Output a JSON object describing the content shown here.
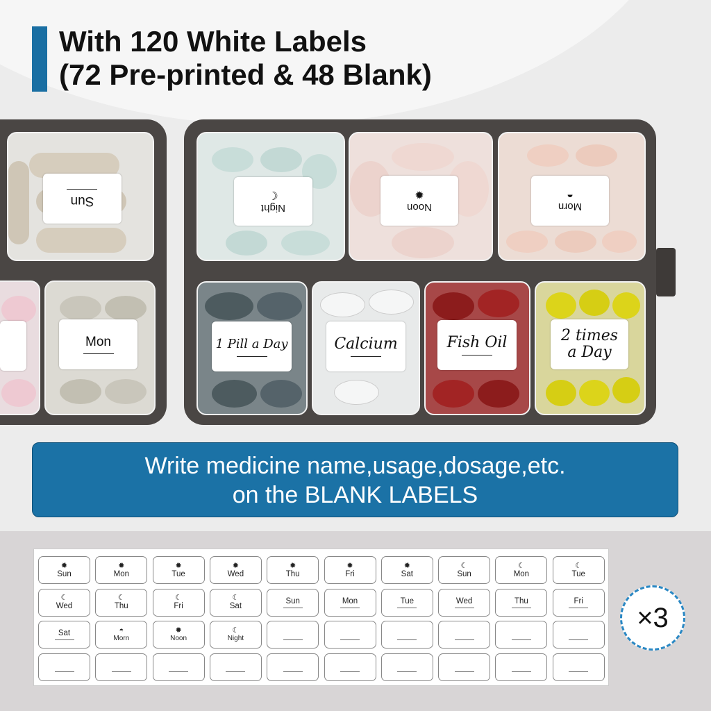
{
  "title": {
    "line1": "With 120 White Labels",
    "line2": "(72 Pre-printed & 48 Blank)"
  },
  "case_labels": {
    "sun": "Sun",
    "night": "Night",
    "noon": "Noon",
    "morn": "Morn",
    "mon": "Mon",
    "one_pill": "1 Pill a Day",
    "calcium": "Calcium",
    "fish_oil": "Fish Oil",
    "two_times": "2 times a Day"
  },
  "banner": {
    "line1": "Write medicine name,usage,dosage,etc.",
    "line2": "on the BLANK LABELS"
  },
  "multiplier": "×3",
  "colors": {
    "accent": "#1b72a6",
    "case": "#4a4644"
  },
  "sheet": [
    [
      {
        "icon": "sun",
        "text": "Sun"
      },
      {
        "icon": "sun",
        "text": "Mon"
      },
      {
        "icon": "sun",
        "text": "Tue"
      },
      {
        "icon": "sun",
        "text": "Wed"
      },
      {
        "icon": "sun",
        "text": "Thu"
      },
      {
        "icon": "sun",
        "text": "Fri"
      },
      {
        "icon": "sun",
        "text": "Sat"
      },
      {
        "icon": "moon",
        "text": "Sun"
      },
      {
        "icon": "moon",
        "text": "Mon"
      },
      {
        "icon": "moon",
        "text": "Tue"
      }
    ],
    [
      {
        "icon": "moon",
        "text": "Wed"
      },
      {
        "icon": "moon",
        "text": "Thu"
      },
      {
        "icon": "moon",
        "text": "Fri"
      },
      {
        "icon": "moon",
        "text": "Sat"
      },
      {
        "icon": "line",
        "text": "Sun"
      },
      {
        "icon": "line",
        "text": "Mon"
      },
      {
        "icon": "line",
        "text": "Tue"
      },
      {
        "icon": "line",
        "text": "Wed"
      },
      {
        "icon": "line",
        "text": "Thu"
      },
      {
        "icon": "line",
        "text": "Fri"
      }
    ],
    [
      {
        "icon": "line",
        "text": "Sat"
      },
      {
        "icon": "sunrise",
        "text": "Morn"
      },
      {
        "icon": "sun",
        "text": "Noon"
      },
      {
        "icon": "moon",
        "text": "Night"
      },
      {
        "icon": "blank",
        "text": ""
      },
      {
        "icon": "blank",
        "text": ""
      },
      {
        "icon": "blank",
        "text": ""
      },
      {
        "icon": "blank",
        "text": ""
      },
      {
        "icon": "blank",
        "text": ""
      },
      {
        "icon": "blank",
        "text": ""
      }
    ],
    [
      {
        "icon": "blank",
        "text": ""
      },
      {
        "icon": "blank",
        "text": ""
      },
      {
        "icon": "blank",
        "text": ""
      },
      {
        "icon": "blank",
        "text": ""
      },
      {
        "icon": "blank",
        "text": ""
      },
      {
        "icon": "blank",
        "text": ""
      },
      {
        "icon": "blank",
        "text": ""
      },
      {
        "icon": "blank",
        "text": ""
      },
      {
        "icon": "blank",
        "text": ""
      },
      {
        "icon": "blank",
        "text": ""
      }
    ]
  ]
}
